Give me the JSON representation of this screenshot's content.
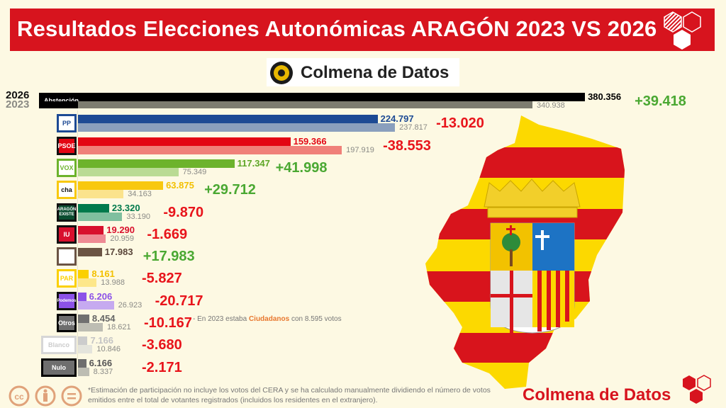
{
  "header": {
    "title": "Resultados Elecciones Autonómicas ARAGÓN 2023 VS 2026",
    "brand": "Colmena de Datos"
  },
  "legend": {
    "year_2026": "2026",
    "year_2023": "2023"
  },
  "chart_data": {
    "type": "bar",
    "orientation": "horizontal",
    "series": [
      {
        "name": "2026"
      },
      {
        "name": "2023"
      }
    ],
    "rows": [
      {
        "party": "Abstención",
        "v2026": 380356,
        "v2023": 340938,
        "l2026": "380.356",
        "l2023": "340.938",
        "diff": "+39.418",
        "c26": "#000000",
        "c23": "#7d7d70",
        "lc": "#000000"
      },
      {
        "party": "PP",
        "v2026": 224797,
        "v2023": 237817,
        "l2026": "224.797",
        "l2023": "237.817",
        "diff": "-13.020",
        "c26": "#1d4a94",
        "c23": "#8a9fbd",
        "lc": "#1d4a94"
      },
      {
        "party": "PSOE",
        "v2026": 159366,
        "v2023": 197919,
        "l2026": "159.366",
        "l2023": "197.919",
        "diff": "-38.553",
        "c26": "#e30613",
        "c23": "#f08079",
        "lc": "#e30613"
      },
      {
        "party": "VOX",
        "v2026": 117347,
        "v2023": 75349,
        "l2026": "117.347",
        "l2023": "75.349",
        "diff": "+41.998",
        "c26": "#6db32c",
        "c23": "#badb94",
        "lc": "#5ea626"
      },
      {
        "party": "CHA",
        "v2026": 63875,
        "v2023": 34163,
        "l2026": "63.875",
        "l2023": "34.163",
        "diff": "+29.712",
        "c26": "#f8c80f",
        "c23": "#fbe38c",
        "lc": "#f3c000"
      },
      {
        "party": "Aragón Existe",
        "v2026": 23320,
        "v2023": 33190,
        "l2026": "23.320",
        "l2023": "33.190",
        "diff": "-9.870",
        "c26": "#007a4c",
        "c23": "#7fbf9f",
        "lc": "#007a4c"
      },
      {
        "party": "IU",
        "v2026": 19290,
        "v2023": 20959,
        "l2026": "19.290",
        "l2023": "20.959",
        "diff": "-1.669",
        "c26": "#d8102d",
        "c23": "#ee8a94",
        "lc": "#d8102d"
      },
      {
        "party": "Teruel Existe",
        "v2026": 17983,
        "v2023": null,
        "l2026": "17.983",
        "l2023": "",
        "diff": "+17.983",
        "c26": "#6b5444",
        "c23": "#6b5444",
        "lc": "#5a463a"
      },
      {
        "party": "PAR",
        "v2026": 8161,
        "v2023": 13988,
        "l2026": "8.161",
        "l2023": "13.988",
        "diff": "-5.827",
        "c26": "#fbd000",
        "c23": "#fde78a",
        "lc": "#f3c000"
      },
      {
        "party": "Podemos",
        "v2026": 6206,
        "v2023": 26923,
        "l2026": "6.206",
        "l2023": "26.923",
        "diff": "-20.717",
        "c26": "#8c52e8",
        "c23": "#c6aaf0",
        "lc": "#8c52e8"
      },
      {
        "party": "Otros",
        "v2026": 8454,
        "v2023": 18621,
        "l2026": "8.454",
        "l2023": "18.621",
        "diff": "-10.167",
        "c26": "#707070",
        "c23": "#bdbdb3",
        "lc": "#666666"
      },
      {
        "party": "Blanco",
        "v2026": 7166,
        "v2023": 10846,
        "l2026": "7.166",
        "l2023": "10.846",
        "diff": "-3.680",
        "c26": "#cccccc",
        "c23": "#e4e4dc",
        "lc": "#c4c4c4"
      },
      {
        "party": "Nulo",
        "v2026": 6166,
        "v2023": 8337,
        "l2026": "6.166",
        "l2023": "8.337",
        "diff": "-2.171",
        "c26": "#6e6e6e",
        "c23": "#bdbdb3",
        "lc": "#555555"
      }
    ],
    "logo_texts": {
      "PP": "PP",
      "PSOE": "PSOE",
      "VOX": "VOX",
      "CHA": "cha",
      "Aragón Existe": "ARAGÓN EXISTE",
      "IU": "IU",
      "PAR": "PAR",
      "Podemos": "Podemos",
      "Otros": "Otros",
      "Blanco": "Blanco",
      "Nulo": "Nulo",
      "Abstención": "Abstención"
    },
    "colors": {
      "gain": "#4aa832",
      "loss": "#e8141b"
    }
  },
  "annotations": {
    "note_prefix": "- En 2023 estaba ",
    "note_party": "Ciudadanos",
    "note_suffix": " con 8.595 votos"
  },
  "footer": {
    "note": "*Estimación de participación no incluye los votos del CERA y se ha calculado manualmente dividiendo el número de votos emitidos entre el total de votantes registrados (incluidos los residentes en el extranjero).",
    "brand": "Colmena de Datos",
    "license_icons": [
      "cc-icon",
      "by-icon",
      "nd-icon"
    ]
  }
}
